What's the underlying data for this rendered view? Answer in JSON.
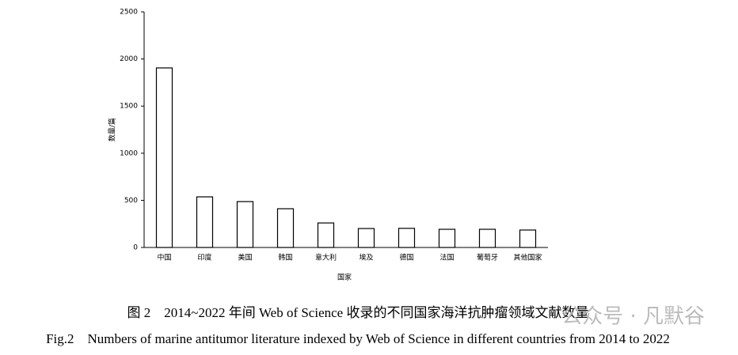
{
  "chart_data": {
    "type": "bar",
    "x_label": "国家",
    "y_label": "数量/篇",
    "categories": [
      "中国",
      "印度",
      "美国",
      "韩国",
      "意大利",
      "埃及",
      "德国",
      "法国",
      "葡萄牙",
      "其他国家"
    ],
    "values": [
      1905,
      537,
      487,
      411,
      260,
      201,
      203,
      193,
      193,
      185
    ],
    "color": "#ffffff",
    "edgecolor": "#000000",
    "ylim": [
      0,
      2500
    ],
    "yticks": [
      0,
      500,
      1000,
      1500,
      2000,
      2500
    ],
    "grid": false,
    "caption_cn": "图 2　2014~2022 年间 Web of Science  收录的不同国家海洋抗肿瘤领域文献数量",
    "caption_en": "Fig.2　Numbers of marine antitumor literature indexed by Web of Science in different countries from 2014 to 2022",
    "watermark": "公众号 · 凡默谷"
  }
}
